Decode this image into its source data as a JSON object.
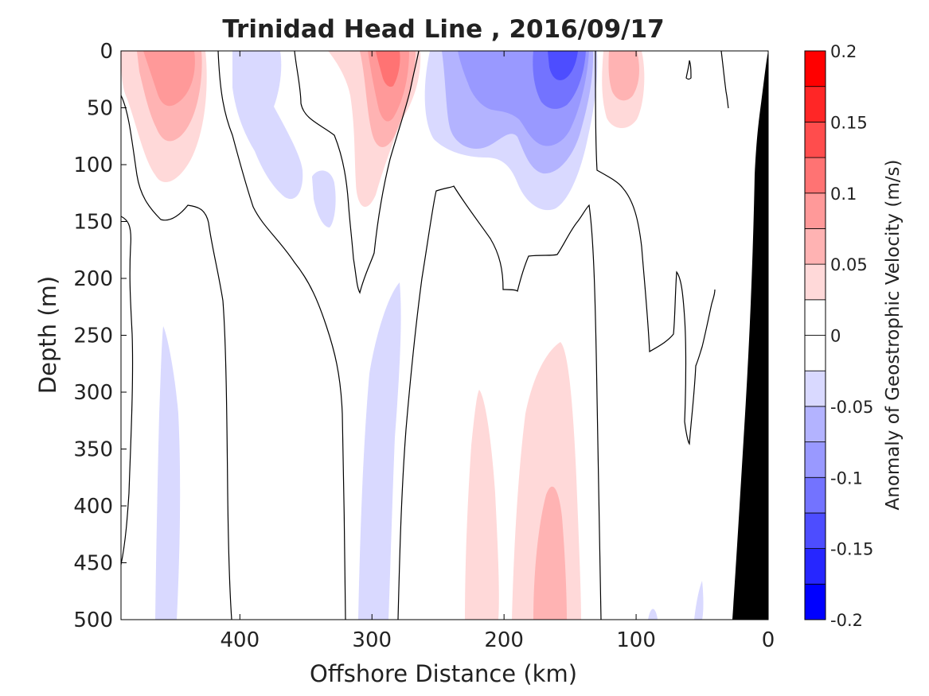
{
  "chart_data": {
    "type": "heatmap",
    "title": "Trinidad Head Line , 2016/09/17",
    "xlabel": "Offshore Distance (km)",
    "ylabel": "Depth (m)",
    "colorbar_label": "Anomaly of Geostrophic Velocity (m/s)",
    "x_axis_reversed": true,
    "y_axis_reversed": true,
    "xlim": [
      490,
      0
    ],
    "ylim": [
      0,
      500
    ],
    "x_ticks": [
      400,
      300,
      200,
      100,
      0
    ],
    "y_ticks": [
      0,
      50,
      100,
      150,
      200,
      250,
      300,
      350,
      400,
      450,
      500
    ],
    "colorbar_levels": [
      -0.2,
      -0.175,
      -0.15,
      -0.125,
      -0.1,
      -0.075,
      -0.05,
      -0.025,
      0,
      0.025,
      0.05,
      0.075,
      0.1,
      0.125,
      0.15,
      0.175,
      0.2
    ],
    "colorbar_ticks": [
      0.2,
      0.15,
      0.1,
      0.05,
      0,
      -0.05,
      -0.1,
      -0.15,
      -0.2
    ],
    "colorbar_colors": [
      "#0000ff",
      "#2626ff",
      "#4d4dff",
      "#7373ff",
      "#9999ff",
      "#b3b3ff",
      "#d9d9ff",
      "#ffffff",
      "#ffffff",
      "#ffd9d9",
      "#ffb3b3",
      "#ff9999",
      "#ff7373",
      "#ff4d4d",
      "#ff2626",
      "#ff0000"
    ],
    "features": [
      {
        "name": "surface jet A",
        "sign": "positive",
        "center_km": 455,
        "depth_range_m": [
          0,
          120
        ],
        "peak_m_s": 0.1
      },
      {
        "name": "surface jet B",
        "sign": "positive",
        "center_km": 290,
        "depth_range_m": [
          0,
          145
        ],
        "peak_m_s": 0.125
      },
      {
        "name": "surface jet C",
        "sign": "positive",
        "center_km": 115,
        "depth_range_m": [
          0,
          70
        ],
        "peak_m_s": 0.075
      },
      {
        "name": "surface countercurrent",
        "sign": "negative",
        "center_km": 160,
        "depth_range_m": [
          0,
          130
        ],
        "peak_m_s": -0.15
      },
      {
        "name": "deep eddy",
        "sign": "positive",
        "center_km": 165,
        "depth_range_m": [
          260,
          500
        ],
        "peak_m_s": 0.075
      },
      {
        "name": "deep eddy",
        "sign": "positive",
        "center_km": 215,
        "depth_range_m": [
          310,
          500
        ],
        "peak_m_s": 0.05
      },
      {
        "name": "deep band",
        "sign": "negative",
        "center_km": 295,
        "depth_range_m": [
          210,
          500
        ],
        "peak_m_s": -0.05
      },
      {
        "name": "deep band",
        "sign": "negative",
        "center_km": 445,
        "depth_range_m": [
          280,
          500
        ],
        "peak_m_s": -0.05
      }
    ],
    "bathymetry_color": "#000000"
  },
  "colors": {
    "neg1": "#d9d9ff",
    "neg2": "#b3b3ff",
    "neg3": "#9999ff",
    "neg4": "#7373ff",
    "neg5": "#4d4dff",
    "pos1": "#ffd9d9",
    "pos2": "#ffb3b3",
    "pos3": "#ff9999",
    "pos4": "#ff7373",
    "bathymetry": "#000000"
  }
}
